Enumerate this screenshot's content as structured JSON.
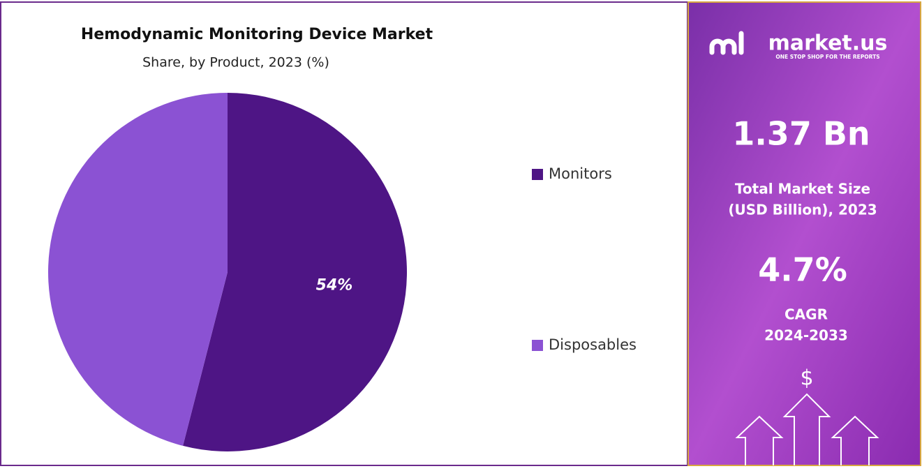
{
  "chart_data": {
    "type": "pie",
    "title": "Hemodynamic Monitoring Device Market",
    "subtitle": "Share, by Product, 2023 (%)",
    "categories": [
      "Monitors",
      "Disposables"
    ],
    "values": [
      54,
      46
    ],
    "value_labels": [
      "54%",
      null
    ],
    "colors": [
      "#4e1585",
      "#8b52d3"
    ],
    "legend": "right"
  },
  "sidebar": {
    "brand": "market.us",
    "tagline": "ONE STOP SHOP FOR THE REPORTS",
    "market_size": "1.37 Bn",
    "market_size_label": [
      "Total Market Size",
      "(USD Billion), 2023"
    ],
    "cagr": "4.7%",
    "cagr_label": [
      "CAGR",
      "2024-2033"
    ],
    "icon": "$"
  }
}
